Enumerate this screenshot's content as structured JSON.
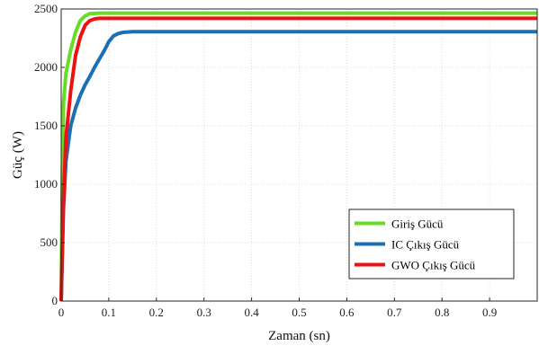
{
  "chart_data": {
    "type": "line",
    "title": "",
    "xlabel": "Zaman (sn)",
    "ylabel": "Güç (W)",
    "xlim": [
      0,
      1
    ],
    "ylim": [
      0,
      2500
    ],
    "x_ticks": [
      0,
      0.1,
      0.2,
      0.3,
      0.4,
      0.5,
      0.6,
      0.7,
      0.8,
      0.9
    ],
    "x_tick_labels": [
      "0",
      "0.1",
      "0.2",
      "0.3",
      "0.4",
      "0.5",
      "0.6",
      "0.7",
      "0.8",
      "0.9"
    ],
    "y_ticks": [
      0,
      500,
      1000,
      1500,
      2000,
      2500
    ],
    "y_tick_labels": [
      "0",
      "500",
      "1000",
      "1500",
      "2000",
      "2500"
    ],
    "grid": true,
    "legend_position": "bottom-right",
    "series": [
      {
        "name": "Giriş Gücü",
        "color": "#66dd22",
        "x": [
          0,
          0.002,
          0.005,
          0.01,
          0.02,
          0.03,
          0.04,
          0.05,
          0.06,
          0.08,
          0.1,
          0.5,
          1.0
        ],
        "y": [
          0,
          1000,
          1700,
          1950,
          2150,
          2300,
          2400,
          2440,
          2460,
          2465,
          2465,
          2465,
          2465
        ]
      },
      {
        "name": "IC Çıkış Gücü",
        "color": "#1a6fb5",
        "x": [
          0,
          0.005,
          0.01,
          0.02,
          0.03,
          0.04,
          0.05,
          0.06,
          0.07,
          0.08,
          0.09,
          0.1,
          0.11,
          0.12,
          0.13,
          0.15,
          0.2,
          0.5,
          1.0
        ],
        "y": [
          0,
          800,
          1200,
          1500,
          1650,
          1760,
          1850,
          1920,
          2000,
          2070,
          2140,
          2220,
          2270,
          2290,
          2300,
          2305,
          2305,
          2305,
          2305
        ]
      },
      {
        "name": "GWO Çıkış Gücü",
        "color": "#ee1111",
        "x": [
          0,
          0.003,
          0.006,
          0.01,
          0.02,
          0.03,
          0.04,
          0.05,
          0.06,
          0.07,
          0.08,
          0.1,
          0.5,
          1.0
        ],
        "y": [
          0,
          600,
          1000,
          1400,
          1800,
          2100,
          2260,
          2360,
          2400,
          2415,
          2420,
          2420,
          2420,
          2420
        ]
      }
    ]
  }
}
